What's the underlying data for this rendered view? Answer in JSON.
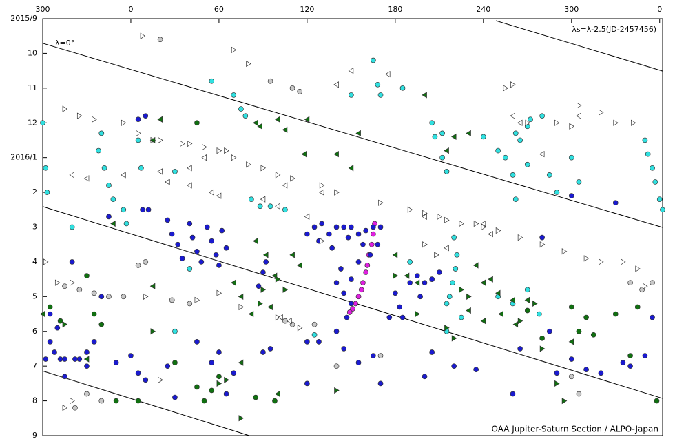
{
  "chart_data": {
    "type": "scatter",
    "xlim": [
      -60,
      362
    ],
    "ylim": [
      12,
      0
    ],
    "xticks": [
      {
        "value": -60,
        "label": "300"
      },
      0,
      60,
      120,
      180,
      240,
      {
        "value": 300,
        "label": "300"
      },
      {
        "value": 360,
        "label": "0"
      }
    ],
    "yticks": [
      {
        "value": 0,
        "label": "2015/9"
      },
      {
        "value": 1,
        "label": "10"
      },
      {
        "value": 2,
        "label": "11"
      },
      {
        "value": 3,
        "label": "12"
      },
      {
        "value": 4,
        "label": "2016/1"
      },
      {
        "value": 5,
        "label": "2"
      },
      {
        "value": 6,
        "label": "3"
      },
      {
        "value": 7,
        "label": "4"
      },
      {
        "value": 8,
        "label": "5"
      },
      {
        "value": 9,
        "label": "6"
      },
      {
        "value": 10,
        "label": "7"
      },
      {
        "value": 11,
        "label": "8"
      },
      {
        "value": 12,
        "label": "9"
      }
    ],
    "annotations": [
      "λ=0°",
      "λs=λ-2.5(JD-2457456)",
      "OAA Jupiter-Saturn Section / ALPO-Japan"
    ],
    "lines": [
      {
        "x": [
          -60,
          362
        ],
        "y": [
          0.71,
          6.01
        ]
      },
      {
        "x": [
          -60,
          362
        ],
        "y": [
          5.41,
          10.93
        ]
      },
      {
        "x": [
          -60,
          80.6
        ],
        "y": [
          10.14,
          12
        ]
      },
      {
        "x": [
          248.5,
          362
        ],
        "y": [
          0.06,
          1.51
        ]
      }
    ],
    "series": [
      {
        "marker": "circle",
        "color": "#e020e0",
        "x": [
          166,
          165,
          164,
          162,
          161,
          160,
          158,
          157,
          155,
          153,
          151,
          149
        ],
        "values": [
          5.9,
          6.2,
          6.5,
          6.8,
          7.1,
          7.3,
          7.6,
          7.8,
          8.0,
          8.2,
          8.35,
          8.45
        ]
      },
      {
        "marker": "circle",
        "color": "#1a1ad0",
        "x": [
          -55,
          -50,
          -58,
          -48,
          -35,
          -30,
          -45,
          -25,
          -20,
          -40,
          5,
          10,
          8,
          12,
          -15,
          25,
          28,
          32,
          35,
          40,
          42,
          45,
          48,
          52,
          55,
          58,
          60,
          62,
          65,
          90,
          92,
          87,
          120,
          125,
          130,
          128,
          135,
          140,
          137,
          145,
          148,
          150,
          155,
          160,
          165,
          143,
          140,
          145,
          150,
          147,
          150,
          155,
          158,
          163,
          168,
          170,
          180,
          183,
          185,
          190,
          195,
          200,
          205,
          210,
          197,
          176,
          -55,
          -52,
          -45,
          -38,
          -30,
          -10,
          0,
          5,
          10,
          25,
          45,
          55,
          60,
          70,
          90,
          95,
          120,
          128,
          140,
          145,
          155,
          165,
          205,
          220,
          265,
          285,
          290,
          300,
          310,
          320,
          335,
          340,
          350,
          355,
          300,
          235,
          260,
          170,
          65,
          30,
          200,
          120,
          280,
          330
        ],
        "values": [
          8.5,
          8.9,
          9.8,
          9.8,
          9.8,
          10.0,
          10.3,
          9.3,
          8.0,
          7.0,
          2.9,
          2.8,
          5.5,
          5.5,
          5.7,
          5.8,
          6.2,
          6.5,
          6.9,
          5.9,
          6.3,
          6.7,
          7.0,
          6.0,
          6.4,
          6.8,
          7.1,
          6.1,
          6.6,
          7.3,
          7.0,
          7.7,
          6.2,
          6.0,
          5.9,
          6.4,
          6.2,
          6.0,
          6.6,
          6.0,
          6.3,
          6.0,
          6.2,
          6.1,
          6.0,
          7.2,
          7.6,
          7.9,
          8.2,
          8.6,
          7.5,
          7.0,
          6.5,
          6.8,
          6.5,
          6.0,
          7.9,
          8.3,
          8.6,
          7.6,
          7.4,
          7.6,
          7.5,
          7.3,
          8.0,
          8.6,
          9.3,
          9.6,
          9.8,
          9.8,
          9.6,
          9.9,
          9.7,
          10.2,
          10.4,
          10.0,
          9.3,
          9.9,
          9.6,
          10.2,
          9.6,
          9.5,
          9.3,
          9.3,
          9.0,
          9.5,
          9.9,
          9.7,
          9.6,
          10.0,
          9.5,
          9.0,
          10.2,
          9.8,
          10.1,
          10.2,
          9.9,
          10.0,
          9.7,
          8.6,
          5.1,
          10.1,
          10.8,
          10.5,
          10.8,
          10.9,
          10.3,
          10.5,
          6.3,
          5.3
        ]
      },
      {
        "marker": "circle",
        "color": "#30e0e0",
        "x": [
          -60,
          -58,
          -57,
          -20,
          -22,
          -18,
          -15,
          -12,
          -5,
          -3,
          5,
          7,
          70,
          75,
          78,
          82,
          88,
          95,
          105,
          150,
          165,
          168,
          170,
          185,
          205,
          207,
          212,
          215,
          220,
          222,
          221,
          219,
          217,
          215,
          225,
          215,
          212,
          240,
          250,
          262,
          265,
          270,
          272,
          280,
          255,
          260,
          262,
          270,
          285,
          290,
          300,
          305,
          350,
          352,
          355,
          357,
          360,
          362,
          55,
          30,
          190,
          250,
          260,
          270,
          278,
          305,
          30,
          125,
          40,
          -40
        ],
        "values": [
          3.0,
          4.3,
          5.0,
          3.3,
          3.8,
          4.3,
          4.8,
          5.2,
          5.5,
          5.9,
          3.5,
          4.3,
          2.2,
          2.6,
          2.8,
          5.2,
          5.4,
          5.4,
          5.5,
          2.2,
          1.2,
          1.9,
          2.2,
          2.0,
          3.0,
          3.4,
          4.0,
          4.4,
          6.3,
          6.8,
          7.2,
          7.6,
          8.0,
          8.2,
          8.6,
          9.0,
          3.3,
          3.4,
          3.8,
          3.3,
          3.5,
          3.1,
          2.9,
          2.8,
          4.0,
          4.5,
          5.2,
          4.2,
          4.5,
          5.0,
          4.0,
          4.7,
          3.5,
          3.9,
          4.3,
          4.7,
          5.2,
          5.5,
          1.8,
          4.4,
          7.0,
          8.0,
          8.2,
          7.8,
          8.5,
          9.0,
          9.0,
          9.1,
          7.2,
          6.0
        ]
      },
      {
        "marker": "circle",
        "color": "#107010",
        "x": [
          -55,
          -48,
          -25,
          -20,
          30,
          45,
          55,
          60,
          50,
          85,
          98,
          -10,
          5,
          45,
          270,
          280,
          300,
          305,
          310,
          315,
          345,
          358,
          330,
          340,
          -30
        ],
        "values": [
          8.3,
          8.7,
          8.5,
          8.8,
          9.9,
          10.6,
          10.7,
          10.3,
          11.0,
          10.9,
          11.0,
          11.0,
          11.0,
          3.0,
          8.4,
          9.2,
          8.3,
          9.0,
          8.6,
          9.1,
          8.3,
          11.0,
          8.5,
          9.7,
          7.4
        ]
      },
      {
        "marker": "circle",
        "color": "#c8c8c8",
        "x": [
          -45,
          -35,
          -25,
          -15,
          -5,
          10,
          5,
          20,
          28,
          95,
          110,
          115,
          -30,
          -38,
          -20,
          110,
          125,
          140,
          170,
          300,
          305,
          340,
          348,
          355,
          105,
          40
        ],
        "values": [
          7.7,
          7.8,
          7.9,
          8.0,
          8.0,
          7.0,
          7.1,
          0.6,
          8.1,
          1.8,
          2.0,
          2.1,
          10.8,
          11.2,
          11.0,
          8.8,
          8.8,
          10.0,
          9.7,
          10.3,
          10.8,
          7.6,
          7.8,
          7.6,
          8.7,
          8.2
        ]
      },
      {
        "marker": "triangle-right",
        "color": "#ffffff",
        "x": [
          8,
          -45,
          -35,
          -25,
          -5,
          5,
          15,
          20,
          35,
          40,
          50,
          60,
          65,
          70,
          80,
          90,
          100,
          110,
          130,
          140,
          170,
          190,
          200,
          210,
          215,
          225,
          235,
          240,
          250,
          265,
          280,
          295,
          310,
          320,
          335,
          345,
          350,
          290,
          300,
          305,
          320,
          330,
          342,
          270,
          260,
          255,
          -58,
          -50,
          -40,
          10,
          45,
          60,
          75,
          100,
          115,
          -45,
          -40,
          20,
          130,
          80,
          70,
          200,
          208
        ],
        "values": [
          0.5,
          2.6,
          2.8,
          2.9,
          3.0,
          3.3,
          3.5,
          3.5,
          3.6,
          3.6,
          3.7,
          3.8,
          3.8,
          4.0,
          4.2,
          4.3,
          4.5,
          4.6,
          4.8,
          5.0,
          5.3,
          5.5,
          5.6,
          5.7,
          5.8,
          5.9,
          5.9,
          6.0,
          6.1,
          6.3,
          6.5,
          6.7,
          6.9,
          7.0,
          7.0,
          7.2,
          7.7,
          3.0,
          3.1,
          2.5,
          2.7,
          3.0,
          3.0,
          3.0,
          1.9,
          2.0,
          7.0,
          7.6,
          7.6,
          8.0,
          8.1,
          7.9,
          8.3,
          8.6,
          8.9,
          11.2,
          11.0,
          10.4,
          6.4,
          1.3,
          0.9,
          6.5,
          6.8
        ]
      },
      {
        "marker": "triangle-left",
        "color": "#107010",
        "x": [
          20,
          15,
          85,
          88,
          100,
          120,
          155,
          105,
          118,
          140,
          150,
          200,
          215,
          220,
          230,
          85,
          92,
          98,
          110,
          115,
          70,
          75,
          95,
          82,
          180,
          188,
          195,
          235,
          240,
          245,
          250,
          260,
          270,
          230,
          240,
          252,
          262,
          75,
          100,
          -30,
          -12,
          -60,
          300,
          15
        ],
        "values": [
          2.9,
          3.5,
          3.0,
          3.1,
          2.9,
          2.9,
          3.3,
          3.2,
          3.9,
          3.9,
          4.3,
          2.2,
          3.8,
          3.4,
          3.3,
          6.4,
          6.8,
          7.4,
          6.8,
          7.1,
          7.6,
          8.0,
          8.3,
          8.5,
          6.8,
          7.4,
          7.6,
          7.1,
          7.6,
          7.5,
          7.9,
          8.1,
          8.1,
          8.4,
          8.7,
          8.5,
          8.8,
          9.9,
          10.8,
          9.8,
          5.9,
          8.5,
          9.3,
          7.7
        ]
      },
      {
        "marker": "triangle-right",
        "color": "#107010",
        "x": [
          60,
          65,
          90,
          88,
          100,
          105,
          225,
          230,
          215,
          220,
          265,
          275,
          280,
          290,
          295,
          75,
          140,
          15,
          -45,
          180,
          195
        ],
        "values": [
          10.5,
          10.4,
          7.8,
          8.2,
          7.5,
          7.8,
          7.8,
          8.0,
          8.9,
          9.2,
          8.7,
          8.2,
          9.5,
          10.5,
          11.0,
          11.5,
          10.7,
          9.0,
          8.8,
          7.4,
          8.5
        ]
      },
      {
        "marker": "triangle-left",
        "color": "#ffffff",
        "x": [
          -40,
          -30,
          20,
          25,
          40,
          55,
          60,
          90,
          100,
          105,
          120,
          140,
          130,
          150,
          175,
          200,
          240,
          260,
          265,
          280,
          305,
          -5,
          50,
          40,
          108,
          102,
          215,
          245
        ],
        "values": [
          4.5,
          4.6,
          4.4,
          4.7,
          4.8,
          5.0,
          5.1,
          5.2,
          5.4,
          4.8,
          5.7,
          1.9,
          5.0,
          1.5,
          1.6,
          5.7,
          5.9,
          2.8,
          3.0,
          3.9,
          2.8,
          4.5,
          4.0,
          4.3,
          8.7,
          8.6,
          6.6,
          6.2
        ]
      }
    ]
  }
}
